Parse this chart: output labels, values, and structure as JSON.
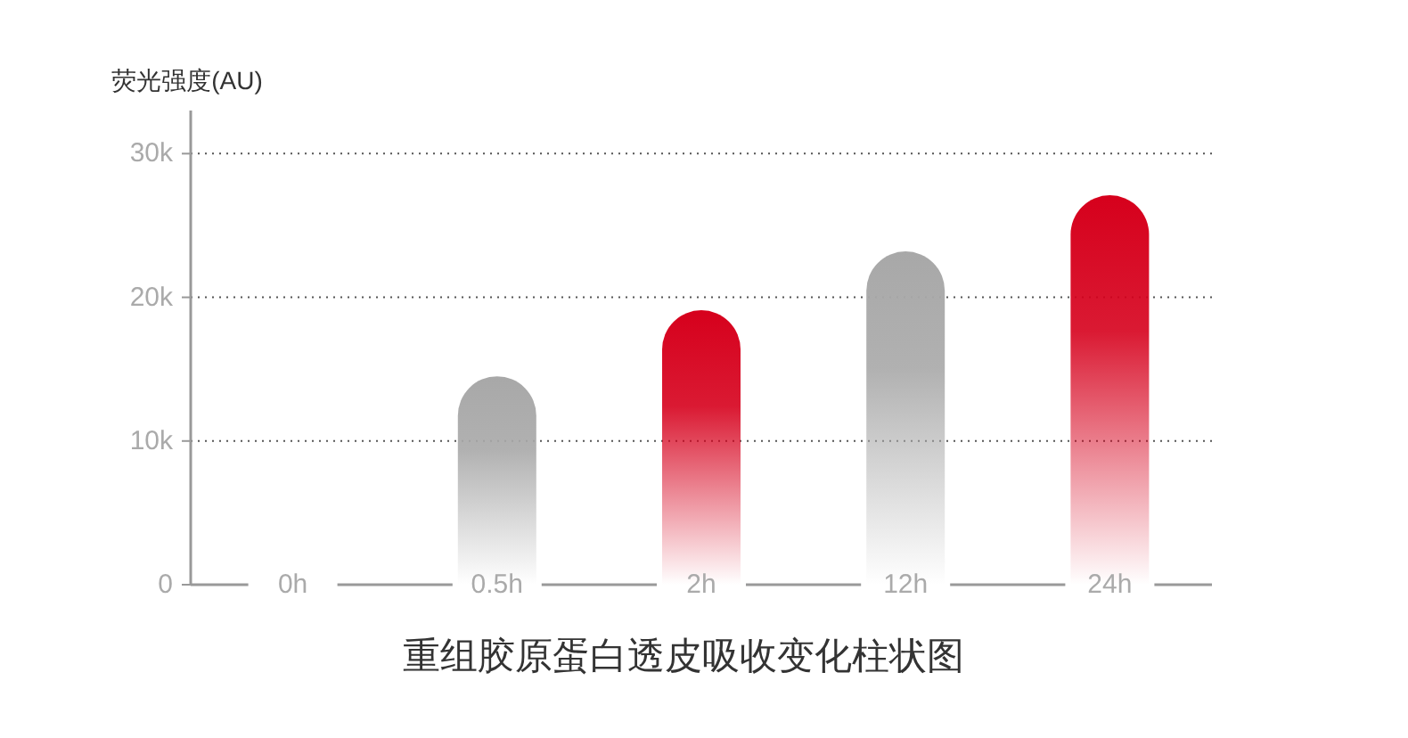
{
  "chart_data": {
    "type": "bar",
    "title": "重组胶原蛋白透皮吸收变化柱状图",
    "ylabel": "荧光强度(AU)",
    "categories": [
      "0h",
      "0.5h",
      "2h",
      "12h",
      "24h"
    ],
    "values": [
      0,
      14500,
      19100,
      23200,
      27100
    ],
    "colors": [
      "#a8a8a8",
      "#a8a8a8",
      "#d6001c",
      "#a8a8a8",
      "#d6001c"
    ],
    "ylim": [
      0,
      33000
    ],
    "yticks": [
      {
        "value": 0,
        "label": "0"
      },
      {
        "value": 10000,
        "label": "10k"
      },
      {
        "value": 20000,
        "label": "20k"
      },
      {
        "value": 30000,
        "label": "30k"
      }
    ],
    "grid": "y"
  }
}
